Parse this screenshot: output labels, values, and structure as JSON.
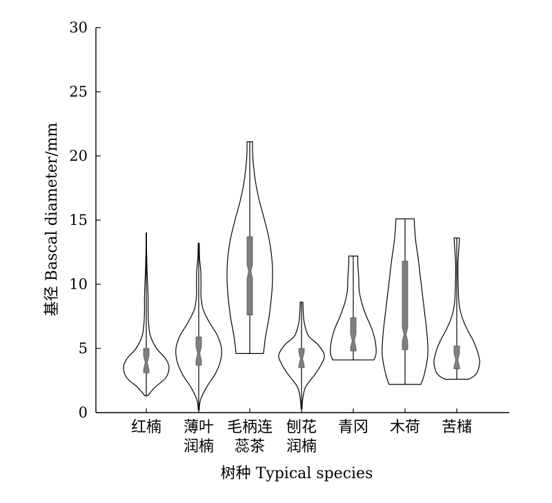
{
  "chart_data": {
    "type": "violin",
    "xlabel": "树种 Typical species",
    "ylabel": "基径 Bascal diameter/mm",
    "ylim": [
      0,
      30
    ],
    "yticks": [
      0,
      5,
      10,
      15,
      20,
      25,
      30
    ],
    "grid": false,
    "legend": "none",
    "colors": {
      "violin_fill": "#ffffff",
      "violin_stroke": "#000000",
      "box_fill": "#7f7f7f"
    },
    "categories": [
      {
        "label_lines": [
          "红楠"
        ],
        "min": 1.3,
        "max": 14.0,
        "q1": 3.1,
        "median": 3.9,
        "q3": 5.0,
        "density": [
          [
            1.3,
            0.05
          ],
          [
            2.0,
            0.4
          ],
          [
            2.7,
            0.85
          ],
          [
            3.5,
            1.0
          ],
          [
            4.2,
            0.85
          ],
          [
            5.0,
            0.45
          ],
          [
            6.0,
            0.18
          ],
          [
            7.0,
            0.1
          ],
          [
            8.0,
            0.08
          ],
          [
            9.0,
            0.08
          ],
          [
            10.0,
            0.06
          ],
          [
            11.0,
            0.035
          ],
          [
            12.0,
            0.02
          ],
          [
            13.0,
            0.01
          ],
          [
            14.0,
            0.01
          ]
        ]
      },
      {
        "label_lines": [
          "薄叶",
          "润楠"
        ],
        "min": 0.2,
        "max": 13.2,
        "q1": 3.7,
        "median": 4.6,
        "q3": 5.9,
        "density": [
          [
            0.2,
            0.02
          ],
          [
            1.0,
            0.08
          ],
          [
            2.0,
            0.35
          ],
          [
            3.0,
            0.72
          ],
          [
            4.0,
            0.95
          ],
          [
            5.0,
            1.0
          ],
          [
            6.0,
            0.82
          ],
          [
            7.0,
            0.48
          ],
          [
            8.0,
            0.2
          ],
          [
            9.0,
            0.1
          ],
          [
            10.0,
            0.1
          ],
          [
            11.0,
            0.09
          ],
          [
            12.0,
            0.04
          ],
          [
            13.2,
            0.02
          ]
        ]
      },
      {
        "label_lines": [
          "毛柄连",
          "蕊茶"
        ],
        "min": 4.6,
        "max": 21.1,
        "q1": 7.6,
        "median": 11.0,
        "q3": 13.7,
        "density": [
          [
            4.6,
            0.6
          ],
          [
            6.0,
            0.7
          ],
          [
            7.5,
            0.85
          ],
          [
            9.0,
            0.95
          ],
          [
            10.5,
            1.0
          ],
          [
            12.0,
            0.97
          ],
          [
            13.5,
            0.85
          ],
          [
            15.0,
            0.65
          ],
          [
            16.5,
            0.42
          ],
          [
            18.0,
            0.25
          ],
          [
            19.5,
            0.15
          ],
          [
            20.5,
            0.12
          ],
          [
            21.1,
            0.12
          ]
        ]
      },
      {
        "label_lines": [
          "刨花",
          "润楠"
        ],
        "min": 0.3,
        "max": 8.6,
        "q1": 3.5,
        "median": 4.2,
        "q3": 5.0,
        "density": [
          [
            0.3,
            0.02
          ],
          [
            1.0,
            0.05
          ],
          [
            2.0,
            0.18
          ],
          [
            3.0,
            0.6
          ],
          [
            3.8,
            0.88
          ],
          [
            4.5,
            1.0
          ],
          [
            5.3,
            0.72
          ],
          [
            6.0,
            0.3
          ],
          [
            7.0,
            0.12
          ],
          [
            8.0,
            0.07
          ],
          [
            8.6,
            0.06
          ]
        ]
      },
      {
        "label_lines": [
          "青冈"
        ],
        "min": 4.1,
        "max": 12.2,
        "q1": 4.8,
        "median": 5.6,
        "q3": 7.4,
        "density": [
          [
            4.1,
            0.9
          ],
          [
            4.6,
            1.0
          ],
          [
            5.5,
            0.97
          ],
          [
            6.5,
            0.82
          ],
          [
            7.5,
            0.58
          ],
          [
            8.5,
            0.38
          ],
          [
            9.5,
            0.26
          ],
          [
            10.5,
            0.24
          ],
          [
            11.5,
            0.2
          ],
          [
            12.2,
            0.2
          ]
        ]
      },
      {
        "label_lines": [
          "木荷"
        ],
        "min": 2.2,
        "max": 15.1,
        "q1": 4.9,
        "median": 6.1,
        "q3": 11.8,
        "density": [
          [
            2.2,
            0.7
          ],
          [
            3.0,
            0.85
          ],
          [
            4.5,
            1.0
          ],
          [
            6.0,
            0.97
          ],
          [
            7.5,
            0.88
          ],
          [
            9.0,
            0.78
          ],
          [
            10.5,
            0.68
          ],
          [
            12.0,
            0.58
          ],
          [
            13.5,
            0.46
          ],
          [
            15.1,
            0.4
          ]
        ]
      },
      {
        "label_lines": [
          "苦槠"
        ],
        "min": 2.6,
        "max": 13.6,
        "q1": 3.4,
        "median": 4.1,
        "q3": 5.2,
        "density": [
          [
            2.6,
            0.52
          ],
          [
            3.0,
            0.85
          ],
          [
            3.8,
            1.0
          ],
          [
            4.5,
            0.95
          ],
          [
            5.5,
            0.75
          ],
          [
            6.5,
            0.45
          ],
          [
            7.5,
            0.22
          ],
          [
            8.5,
            0.1
          ],
          [
            10.0,
            0.06
          ],
          [
            11.5,
            0.05
          ],
          [
            12.5,
            0.08
          ],
          [
            13.6,
            0.12
          ]
        ]
      }
    ]
  }
}
